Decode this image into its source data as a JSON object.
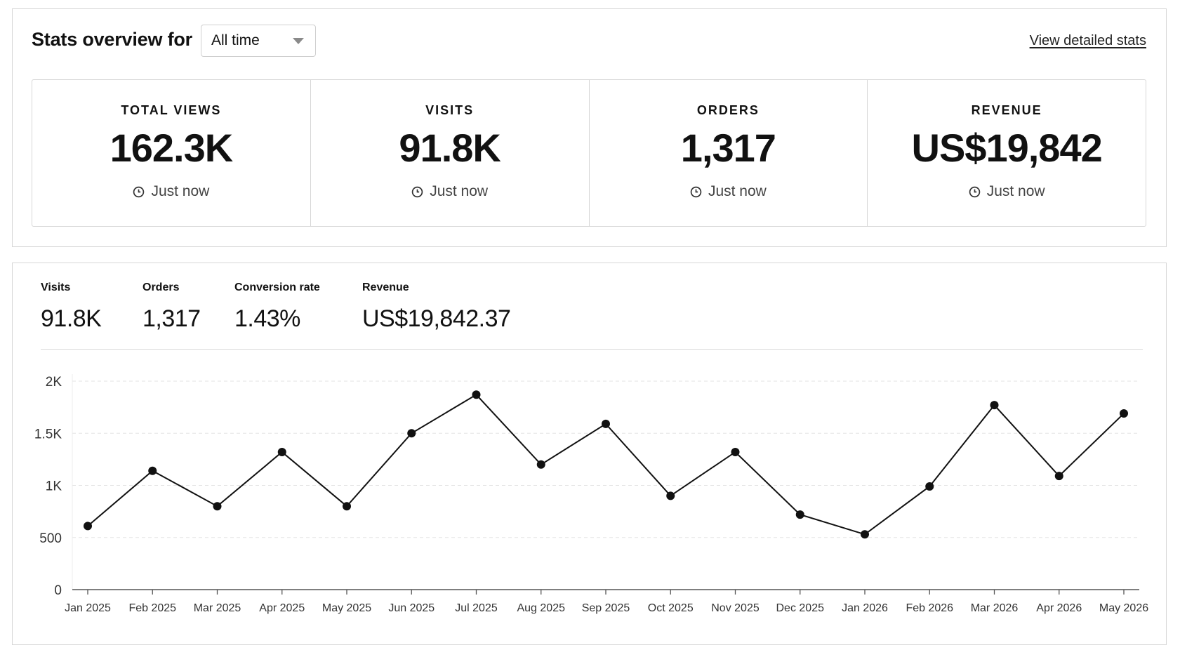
{
  "header": {
    "title": "Stats overview for",
    "period_selected": "All time",
    "detail_link": "View detailed stats"
  },
  "stat_cards": [
    {
      "label": "TOTAL VIEWS",
      "value": "162.3K",
      "updated": "Just now",
      "icon": "clock-icon"
    },
    {
      "label": "VISITS",
      "value": "91.8K",
      "updated": "Just now",
      "icon": "clock-icon"
    },
    {
      "label": "ORDERS",
      "value": "1,317",
      "updated": "Just now",
      "icon": "clock-icon"
    },
    {
      "label": "REVENUE",
      "value": "US$19,842",
      "updated": "Just now",
      "icon": "clock-icon"
    }
  ],
  "summary_metrics": [
    {
      "label": "Visits",
      "value": "91.8K"
    },
    {
      "label": "Orders",
      "value": "1,317"
    },
    {
      "label": "Conversion rate",
      "value": "1.43%"
    },
    {
      "label": "Revenue",
      "value": "US$19,842.37"
    }
  ],
  "chart_data": {
    "type": "line",
    "x": [
      "Jan 2025",
      "Feb 2025",
      "Mar 2025",
      "Apr 2025",
      "May 2025",
      "Jun 2025",
      "Jul 2025",
      "Aug 2025",
      "Sep 2025",
      "Oct 2025",
      "Nov 2025",
      "Dec 2025",
      "Jan 2026",
      "Feb 2026",
      "Mar 2026",
      "Apr 2026",
      "May 2026"
    ],
    "series": [
      {
        "values": [
          610,
          1140,
          800,
          1320,
          800,
          1500,
          1870,
          1200,
          1590,
          900,
          1320,
          720,
          530,
          990,
          1770,
          1090,
          1690
        ]
      }
    ],
    "y_ticks": [
      "0",
      "500",
      "1K",
      "1.5K",
      "2K"
    ],
    "y_tick_values": [
      0,
      500,
      1000,
      1500,
      2000
    ],
    "ylim": [
      0,
      2000
    ],
    "grid": true,
    "colors": {
      "line": "#111111",
      "grid": "#e3e3e3",
      "axis": "#555555"
    }
  }
}
